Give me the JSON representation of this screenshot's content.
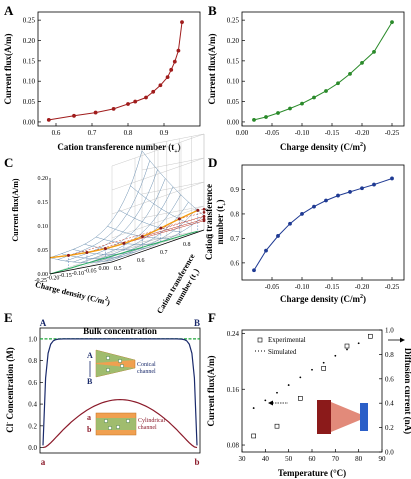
{
  "chart_data": [
    {
      "panel": "A",
      "type": "line",
      "xlabel": "Cation transference number (t",
      "xlabel_sub": "+",
      "xlabel_close": ")",
      "ylabel": "Current flux(A/m)",
      "xlim": [
        0.55,
        1.0
      ],
      "ylim": [
        -0.01,
        0.27
      ],
      "xticks": [
        "0.6",
        "0.7",
        "0.8",
        "0.9"
      ],
      "xtick_vals": [
        0.6,
        0.7,
        0.8,
        0.9
      ],
      "yticks": [
        "0.00",
        "0.05",
        "0.10",
        "0.15",
        "0.20",
        "0.25"
      ],
      "ytick_vals": [
        0,
        0.05,
        0.1,
        0.15,
        0.2,
        0.25
      ],
      "x": [
        0.58,
        0.65,
        0.71,
        0.76,
        0.8,
        0.82,
        0.85,
        0.87,
        0.89,
        0.91,
        0.92,
        0.93,
        0.94,
        0.95
      ],
      "y": [
        0.005,
        0.015,
        0.023,
        0.032,
        0.044,
        0.05,
        0.06,
        0.074,
        0.09,
        0.11,
        0.128,
        0.148,
        0.175,
        0.245
      ],
      "color": "#a01c1c"
    },
    {
      "panel": "B",
      "type": "line",
      "xlabel": "Charge density (C/m",
      "xlabel_sup": "2",
      "xlabel_close": ")",
      "ylabel": "Current flux(A/m)",
      "xlim": [
        0.0,
        -0.27
      ],
      "ylim": [
        -0.01,
        0.27
      ],
      "xticks": [
        "0.00",
        "-0.05",
        "-0.10",
        "-0.15",
        "-0.20",
        "-0.25"
      ],
      "xtick_vals": [
        0,
        -0.05,
        -0.1,
        -0.15,
        -0.2,
        -0.25
      ],
      "yticks": [
        "0.00",
        "0.05",
        "0.10",
        "0.15",
        "0.20",
        "0.25"
      ],
      "ytick_vals": [
        0,
        0.05,
        0.1,
        0.15,
        0.2,
        0.25
      ],
      "x": [
        -0.02,
        -0.04,
        -0.06,
        -0.08,
        -0.1,
        -0.12,
        -0.14,
        -0.16,
        -0.18,
        -0.2,
        -0.22,
        -0.25
      ],
      "y": [
        0.005,
        0.012,
        0.022,
        0.033,
        0.045,
        0.06,
        0.076,
        0.095,
        0.118,
        0.145,
        0.172,
        0.245
      ],
      "color": "#2a8a2a"
    },
    {
      "panel": "C",
      "type": "surface3d",
      "xlabel": "Charge density (C/m",
      "xlabel_sup": "2",
      "xlabel_close": ")",
      "ylabel": "Current flux(A/m)",
      "zlabel": "Cation transference",
      "zlabel2": "number (t",
      "zlabel2_sub": "+",
      "zlabel2_close": ")",
      "xticks": [
        "0.00",
        "-0.05",
        "-0.10",
        "-0.15",
        "-0.20",
        "-0.25"
      ],
      "zticks": [
        "0.5",
        "0.6",
        "0.7",
        "0.8",
        "0.9"
      ],
      "yticks": [
        "0.00",
        "0.05",
        "0.10",
        "0.15",
        "0.20"
      ]
    },
    {
      "panel": "D",
      "type": "line",
      "xlabel": "Charge density (C/m",
      "xlabel_sup": "2",
      "xlabel_close": ")",
      "ylabel": "Cation transference",
      "ylabel2": "number (t",
      "ylabel2_sub": "+",
      "ylabel2_close": ")",
      "xlim": [
        0.0,
        -0.27
      ],
      "ylim": [
        0.53,
        1.0
      ],
      "xticks": [
        "-0.05",
        "-0.10",
        "-0.15",
        "-0.20",
        "-0.25"
      ],
      "xtick_vals": [
        -0.05,
        -0.1,
        -0.15,
        -0.2,
        -0.25
      ],
      "yticks": [
        "0.6",
        "0.7",
        "0.8",
        "0.9"
      ],
      "ytick_vals": [
        0.6,
        0.7,
        0.8,
        0.9
      ],
      "x": [
        -0.02,
        -0.04,
        -0.06,
        -0.08,
        -0.1,
        -0.12,
        -0.14,
        -0.16,
        -0.18,
        -0.2,
        -0.22,
        -0.25
      ],
      "y": [
        0.57,
        0.65,
        0.71,
        0.76,
        0.8,
        0.83,
        0.855,
        0.875,
        0.89,
        0.905,
        0.92,
        0.945
      ],
      "color": "#1f3a93"
    },
    {
      "panel": "E",
      "type": "line",
      "ylabel": "Cl",
      "ylabel_sup": "-",
      "ylabel_rest": " Concentration (M)",
      "ylim": [
        -0.05,
        1.1
      ],
      "yticks": [
        "0.0",
        "0.2",
        "0.4",
        "0.6",
        "0.8",
        "1.0"
      ],
      "ytick_vals": [
        0,
        0.2,
        0.4,
        0.6,
        0.8,
        1.0
      ],
      "bulk_label": "Bulk concentration",
      "top_labels": [
        "A",
        "B"
      ],
      "bottom_labels": [
        "a",
        "b"
      ],
      "inset_conical_letters": [
        "A",
        "B"
      ],
      "inset_conical_label": [
        "Conical",
        "channel"
      ],
      "inset_cyl_letters": [
        "a",
        "b"
      ],
      "inset_cyl_label": [
        "Cylindrical",
        "channel"
      ],
      "colors": {
        "conical": "#1a2a6b",
        "cylindrical": "#8b1a2a",
        "bulk": "#1fa53a"
      }
    },
    {
      "panel": "F",
      "type": "scatter",
      "xlabel": "Temperature (°C)",
      "ylabel": "Current flux(A/m)",
      "y2label": "Diffusion current (nA)",
      "xlim": [
        30,
        90
      ],
      "ylim": [
        0.07,
        0.245
      ],
      "y2lim": [
        0,
        1.0
      ],
      "xticks": [
        "30",
        "40",
        "50",
        "60",
        "70",
        "80",
        "90"
      ],
      "xtick_vals": [
        30,
        40,
        50,
        60,
        70,
        80,
        90
      ],
      "yticks": [
        "0.08",
        "0.16",
        "0.24"
      ],
      "ytick_vals": [
        0.08,
        0.16,
        0.24
      ],
      "y2ticks": [
        "0.0",
        "0.2",
        "0.4",
        "0.6",
        "0.8",
        "1.0"
      ],
      "y2tick_vals": [
        0,
        0.2,
        0.4,
        0.6,
        0.8,
        1.0
      ],
      "legend": [
        "Experimental",
        "Simulated"
      ],
      "experimental_x": [
        35,
        45,
        55,
        65,
        75,
        85
      ],
      "experimental_y": [
        0.093,
        0.107,
        0.147,
        0.19,
        0.222,
        0.236
      ],
      "simulated_x": [
        35,
        40,
        45,
        50,
        55,
        60,
        65,
        70,
        75,
        80,
        85
      ],
      "simulated_y": [
        0.133,
        0.144,
        0.155,
        0.166,
        0.177,
        0.188,
        0.198,
        0.208,
        0.217,
        0.226,
        0.234
      ]
    }
  ],
  "panels": {
    "A": "A",
    "B": "B",
    "C": "C",
    "D": "D",
    "E": "E",
    "F": "F"
  }
}
